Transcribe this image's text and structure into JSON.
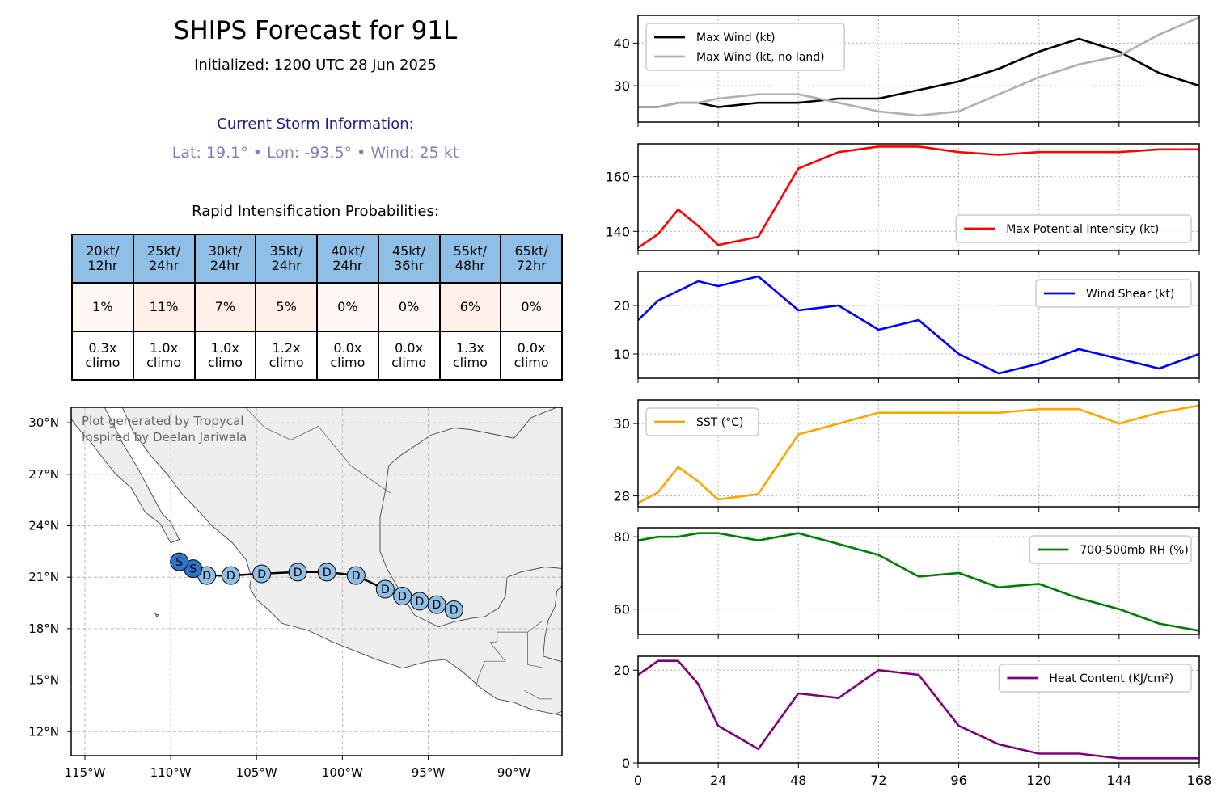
{
  "header": {
    "title": "SHIPS Forecast for 91L",
    "subtitle": "Initialized: 1200 UTC 28 Jun 2025",
    "storm_heading": "Current Storm Information:",
    "storm_line": "Lat: 19.1°  • Lon: -93.5°  • Wind: 25 kt"
  },
  "ri_table": {
    "heading": "Rapid Intensification Probabilities:",
    "columns": [
      {
        "top": "20kt/",
        "bottom": "12hr",
        "prob": "1%",
        "prob_value": 1,
        "climo_top": "0.3x",
        "climo_bottom": "climo"
      },
      {
        "top": "25kt/",
        "bottom": "24hr",
        "prob": "11%",
        "prob_value": 11,
        "climo_top": "1.0x",
        "climo_bottom": "climo"
      },
      {
        "top": "30kt/",
        "bottom": "24hr",
        "prob": "7%",
        "prob_value": 7,
        "climo_top": "1.0x",
        "climo_bottom": "climo"
      },
      {
        "top": "35kt/",
        "bottom": "24hr",
        "prob": "5%",
        "prob_value": 5,
        "climo_top": "1.2x",
        "climo_bottom": "climo"
      },
      {
        "top": "40kt/",
        "bottom": "24hr",
        "prob": "0%",
        "prob_value": 0,
        "climo_top": "0.0x",
        "climo_bottom": "climo"
      },
      {
        "top": "45kt/",
        "bottom": "36hr",
        "prob": "0%",
        "prob_value": 0,
        "climo_top": "0.0x",
        "climo_bottom": "climo"
      },
      {
        "top": "55kt/",
        "bottom": "48hr",
        "prob": "6%",
        "prob_value": 6,
        "climo_top": "1.3x",
        "climo_bottom": "climo"
      },
      {
        "top": "65kt/",
        "bottom": "72hr",
        "prob": "0%",
        "prob_value": 0,
        "climo_top": "0.0x",
        "climo_bottom": "climo"
      }
    ],
    "colors": {
      "header": "#8fbfe6",
      "prob_low": "#fff8f4",
      "prob_mid": "#fff0ea"
    }
  },
  "map": {
    "credit_line1": "Plot generated by Tropycal",
    "credit_line2": "Inspired by Deelan Jariwala",
    "lat_ticks": [
      "30°N",
      "27°N",
      "24°N",
      "21°N",
      "18°N",
      "15°N",
      "12°N"
    ],
    "lat_values": [
      30,
      27,
      24,
      21,
      18,
      15,
      12
    ],
    "lon_ticks": [
      "115°W",
      "110°W",
      "105°W",
      "100°W",
      "95°W",
      "90°W"
    ],
    "lon_values": [
      -115,
      -110,
      -105,
      -100,
      -95,
      -90
    ],
    "extent": {
      "lon_min": -115.8,
      "lon_max": -87.2,
      "lat_min": 10.6,
      "lat_max": 30.9
    },
    "track": [
      {
        "lon": -93.5,
        "lat": 19.1,
        "label": "D"
      },
      {
        "lon": -94.5,
        "lat": 19.4,
        "label": "D"
      },
      {
        "lon": -95.5,
        "lat": 19.6,
        "label": "D"
      },
      {
        "lon": -96.5,
        "lat": 19.9,
        "label": "D"
      },
      {
        "lon": -97.5,
        "lat": 20.3,
        "label": "D"
      },
      {
        "lon": -99.2,
        "lat": 21.1,
        "label": "D"
      },
      {
        "lon": -100.9,
        "lat": 21.3,
        "label": "D"
      },
      {
        "lon": -102.6,
        "lat": 21.3,
        "label": "D"
      },
      {
        "lon": -104.7,
        "lat": 21.2,
        "label": "D"
      },
      {
        "lon": -106.5,
        "lat": 21.1,
        "label": "D"
      },
      {
        "lon": -107.9,
        "lat": 21.1,
        "label": "D"
      },
      {
        "lon": -108.7,
        "lat": 21.5,
        "label": "S"
      },
      {
        "lon": -109.5,
        "lat": 21.9,
        "label": "S"
      }
    ],
    "colors": {
      "depression": "#8fbfe6",
      "storm": "#2e73c9",
      "land": "#eeeeee"
    }
  },
  "chart_data": [
    {
      "type": "line",
      "x": [
        0,
        6,
        12,
        18,
        24,
        36,
        48,
        60,
        72,
        84,
        96,
        108,
        120,
        132,
        144,
        156,
        168
      ],
      "xlim": [
        0,
        168
      ],
      "ylim": [
        21.5,
        46.5
      ],
      "yticks": [
        30,
        40
      ],
      "legend_position": "top-left",
      "grid": true,
      "series": [
        {
          "name": "Max Wind (kt)",
          "color": "#000000",
          "values": [
            25,
            25,
            26,
            26,
            25,
            26,
            26,
            27,
            27,
            29,
            31,
            34,
            38,
            41,
            38,
            33,
            30
          ]
        },
        {
          "name": "Max Wind (kt, no land)",
          "color": "#b0b0b0",
          "values": [
            25,
            25,
            26,
            26,
            27,
            28,
            28,
            26,
            24,
            23,
            24,
            28,
            32,
            35,
            37,
            42,
            46
          ]
        }
      ]
    },
    {
      "type": "line",
      "x": [
        0,
        6,
        12,
        18,
        24,
        36,
        48,
        60,
        72,
        84,
        96,
        108,
        120,
        132,
        144,
        156,
        168
      ],
      "xlim": [
        0,
        168
      ],
      "ylim": [
        133,
        172
      ],
      "yticks": [
        140,
        160
      ],
      "legend_position": "bottom-right",
      "grid": true,
      "series": [
        {
          "name": "Max Potential Intensity (kt)",
          "color": "#ff0000",
          "values": [
            134,
            139,
            148,
            142,
            135,
            138,
            163,
            169,
            171,
            171,
            169,
            168,
            169,
            169,
            169,
            170,
            170
          ]
        }
      ]
    },
    {
      "type": "line",
      "x": [
        0,
        6,
        12,
        18,
        24,
        36,
        48,
        60,
        72,
        84,
        96,
        108,
        120,
        132,
        144,
        156,
        168
      ],
      "xlim": [
        0,
        168
      ],
      "ylim": [
        5,
        27
      ],
      "yticks": [
        10,
        20
      ],
      "legend_position": "top-right",
      "grid": true,
      "series": [
        {
          "name": "Wind Shear (kt)",
          "color": "#0000ff",
          "values": [
            17,
            21,
            23,
            25,
            24,
            26,
            19,
            20,
            15,
            17,
            10,
            6,
            8,
            11,
            9,
            7,
            10
          ]
        }
      ]
    },
    {
      "type": "line",
      "x": [
        0,
        6,
        12,
        18,
        24,
        36,
        48,
        60,
        72,
        84,
        96,
        108,
        120,
        132,
        144,
        156,
        168
      ],
      "xlim": [
        0,
        168
      ],
      "ylim": [
        27.7,
        30.65
      ],
      "yticks": [
        28,
        30
      ],
      "legend_position": "top-left",
      "grid": true,
      "series": [
        {
          "name": "SST (°C)",
          "color": "#ffa500",
          "values": [
            27.8,
            28.1,
            28.8,
            28.4,
            27.9,
            28.05,
            29.7,
            30.0,
            30.3,
            30.3,
            30.3,
            30.3,
            30.4,
            30.4,
            30.0,
            30.3,
            30.5
          ]
        }
      ]
    },
    {
      "type": "line",
      "x": [
        0,
        6,
        12,
        18,
        24,
        36,
        48,
        60,
        72,
        84,
        96,
        108,
        120,
        132,
        144,
        156,
        168
      ],
      "xlim": [
        0,
        168
      ],
      "ylim": [
        53,
        82.5
      ],
      "yticks": [
        60,
        80
      ],
      "legend_position": "top-right",
      "grid": true,
      "series": [
        {
          "name": "700-500mb RH (%)",
          "color": "#008000",
          "values": [
            79,
            80,
            80,
            81,
            81,
            79,
            81,
            78,
            75,
            69,
            70,
            66,
            67,
            63,
            60,
            56,
            54
          ]
        }
      ]
    },
    {
      "type": "line",
      "x": [
        0,
        6,
        12,
        18,
        24,
        36,
        48,
        60,
        72,
        84,
        96,
        108,
        120,
        132,
        144,
        156,
        168
      ],
      "xlim": [
        0,
        168
      ],
      "ylim": [
        0,
        23
      ],
      "yticks": [
        0,
        20
      ],
      "xticks": [
        0,
        24,
        48,
        72,
        96,
        120,
        144,
        168
      ],
      "legend_position": "top-right",
      "grid": true,
      "series": [
        {
          "name": "Heat Content (KJ/cm²)",
          "color": "#800080",
          "values": [
            19,
            22,
            22,
            17,
            8,
            3,
            15,
            14,
            20,
            19,
            8,
            4,
            2,
            2,
            1,
            1,
            1
          ]
        }
      ]
    }
  ]
}
